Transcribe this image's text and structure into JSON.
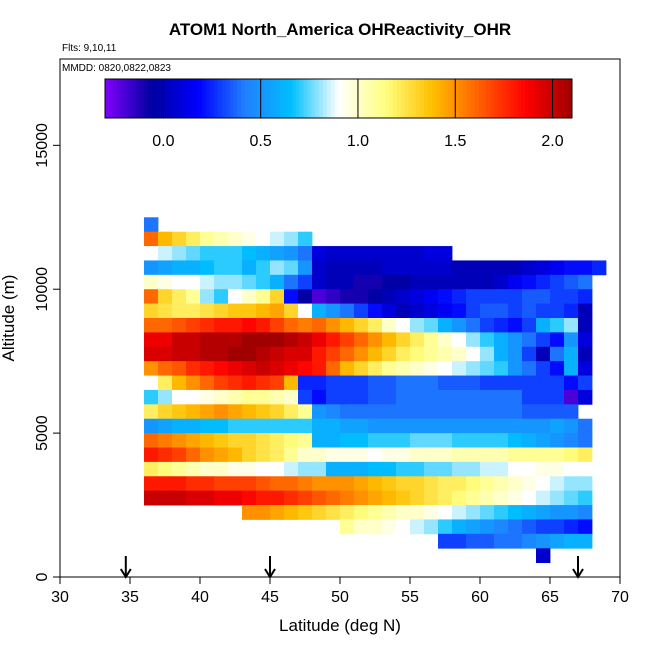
{
  "chart_data": {
    "type": "heatmap",
    "title": "ATOM1 North_America OHReactivity_OHR",
    "flights_text": "Flts: 9,10,11",
    "dates_text": "MMDD: 0820,0822,0823",
    "xlabel": "Latitude (deg N)",
    "ylabel": "Altitude (m)",
    "xlim": [
      30,
      70
    ],
    "ylim": [
      0,
      18000
    ],
    "x_ticks": [
      30,
      35,
      40,
      45,
      50,
      55,
      60,
      65,
      70
    ],
    "y_ticks": [
      0,
      5000,
      10000,
      15000
    ],
    "cell_width_deg": 1,
    "cell_height_m": 500,
    "colorbar": {
      "range": [
        -0.3,
        2.1
      ],
      "ticks": [
        0.0,
        0.5,
        1.0,
        1.5,
        2.0
      ],
      "tick_labels": [
        "0.0",
        "0.5",
        "1.0",
        "1.5",
        "2.0"
      ],
      "colors": [
        "#8000ff",
        "#0000a0",
        "#0000ff",
        "#2080ff",
        "#00c0ff",
        "#ffffff",
        "#ffff80",
        "#ffc000",
        "#ff6000",
        "#ff0000",
        "#a00000"
      ]
    },
    "markers_latitude": [
      34.7,
      45,
      67
    ],
    "rows": [
      {
        "alt": 12250,
        "lat_start": 36,
        "values": [
          0.4
        ]
      },
      {
        "alt": 11750,
        "lat_start": 36,
        "values": [
          1.6,
          1.4,
          1.3,
          1.2,
          1.1,
          1.05,
          1.0,
          0.95,
          0.9,
          0.85,
          0.8,
          0.7
        ]
      },
      {
        "alt": 11250,
        "lat_start": 36,
        "values": [
          0.9,
          0.85,
          0.8,
          0.75,
          0.7,
          0.7,
          0.7,
          0.65,
          0.6,
          0.55,
          0.5,
          0.4,
          0.1,
          0.05,
          0.05,
          0.05,
          0.05,
          0.05,
          0.05,
          0.05,
          0.1,
          0.1
        ]
      },
      {
        "alt": 10750,
        "lat_start": 36,
        "values": [
          0.5,
          0.55,
          0.6,
          0.6,
          0.65,
          0.7,
          0.7,
          0.6,
          0.7,
          0.8,
          0.75,
          0.5,
          0.05,
          0.0,
          0.0,
          0.0,
          0.0,
          0.05,
          0.05,
          0.05,
          0.05,
          0.05,
          0.0,
          0.0,
          0.0,
          0.0,
          0.0,
          0.05,
          0.1,
          0.15,
          0.2,
          0.2,
          0.25
        ]
      },
      {
        "alt": 10250,
        "lat_start": 36,
        "values": [
          1.0,
          0.95,
          0.9,
          0.9,
          0.85,
          0.8,
          0.8,
          0.75,
          0.7,
          0.6,
          0.4,
          0.3,
          0.05,
          0.0,
          0.0,
          -0.1,
          -0.1,
          -0.05,
          -0.05,
          0.0,
          0.0,
          0.0,
          0.0,
          0.0,
          0.0,
          0.05,
          0.15,
          0.2,
          0.25,
          0.3,
          0.35,
          0.4
        ]
      },
      {
        "alt": 9750,
        "lat_start": 36,
        "values": [
          1.6,
          1.3,
          1.2,
          1.1,
          0.8,
          0.7,
          0.9,
          1.0,
          1.1,
          1.3,
          0.2,
          -0.05,
          -0.2,
          -0.15,
          -0.1,
          -0.1,
          -0.05,
          0.0,
          0.05,
          0.1,
          0.15,
          0.2,
          0.25,
          0.3,
          0.3,
          0.3,
          0.3,
          0.35,
          0.35,
          0.3,
          0.3,
          0.25
        ]
      },
      {
        "alt": 9250,
        "lat_start": 36,
        "values": [
          1.3,
          1.25,
          1.2,
          1.2,
          1.25,
          1.3,
          1.35,
          1.35,
          1.4,
          1.45,
          1.3,
          0.9,
          0.6,
          0.5,
          0.4,
          0.3,
          0.2,
          0.1,
          0.0,
          0.05,
          0.1,
          0.15,
          0.2,
          0.3,
          0.35,
          0.35,
          0.3,
          0.35,
          0.3,
          0.3,
          0.25,
          0.0
        ]
      },
      {
        "alt": 8750,
        "lat_start": 36,
        "values": [
          1.6,
          1.6,
          1.65,
          1.7,
          1.75,
          1.8,
          1.8,
          1.85,
          1.8,
          1.7,
          1.6,
          1.55,
          1.6,
          1.5,
          1.4,
          1.3,
          1.2,
          1.0,
          0.9,
          0.8,
          0.75,
          0.6,
          0.5,
          0.4,
          0.3,
          0.25,
          0.2,
          0.3,
          0.6,
          0.7,
          0.8,
          0.0
        ]
      },
      {
        "alt": 8250,
        "lat_start": 36,
        "values": [
          1.9,
          1.9,
          2.0,
          2.0,
          2.05,
          2.05,
          2.05,
          2.1,
          2.1,
          2.1,
          2.05,
          2.0,
          1.9,
          1.8,
          1.7,
          1.6,
          1.5,
          1.4,
          1.3,
          1.2,
          1.1,
          1.0,
          0.9,
          0.8,
          0.7,
          0.6,
          0.5,
          0.4,
          0.3,
          0.2,
          0.5,
          0.1
        ]
      },
      {
        "alt": 7750,
        "lat_start": 36,
        "values": [
          1.95,
          1.95,
          2.0,
          2.0,
          2.05,
          2.05,
          2.1,
          2.1,
          2.05,
          2.0,
          1.95,
          1.95,
          1.8,
          1.7,
          1.6,
          1.5,
          1.4,
          1.3,
          1.2,
          1.15,
          1.1,
          1.05,
          1.0,
          0.9,
          0.8,
          0.6,
          0.5,
          0.3,
          0.0,
          0.4,
          0.6,
          0.0
        ]
      },
      {
        "alt": 7250,
        "lat_start": 36,
        "values": [
          1.5,
          1.6,
          1.65,
          1.75,
          1.8,
          1.85,
          1.9,
          1.95,
          2.0,
          1.95,
          1.9,
          1.85,
          1.8,
          1.6,
          1.4,
          1.3,
          1.2,
          1.1,
          1.05,
          1.0,
          0.95,
          0.9,
          0.85,
          0.8,
          0.75,
          0.7,
          0.5,
          0.4,
          0.3,
          0.2,
          0.6,
          0.1
        ]
      },
      {
        "alt": 6750,
        "lat_start": 36,
        "values": [
          0.9,
          1.2,
          1.4,
          1.5,
          1.6,
          1.7,
          1.75,
          1.8,
          1.75,
          1.7,
          1.4,
          0.25,
          0.25,
          0.3,
          0.3,
          0.3,
          0.35,
          0.35,
          0.4,
          0.4,
          0.4,
          0.35,
          0.35,
          0.35,
          0.3,
          0.3,
          0.3,
          0.3,
          0.3,
          0.3,
          0.2,
          0.3
        ]
      },
      {
        "alt": 6250,
        "lat_start": 36,
        "values": [
          0.7,
          0.8,
          0.9,
          0.9,
          0.95,
          1.0,
          1.05,
          1.1,
          1.1,
          1.05,
          1.0,
          0.3,
          0.2,
          0.3,
          0.3,
          0.3,
          0.35,
          0.35,
          0.4,
          0.4,
          0.4,
          0.4,
          0.4,
          0.4,
          0.4,
          0.4,
          0.4,
          0.3,
          0.3,
          0.3,
          -0.2,
          0.1
        ]
      },
      {
        "alt": 5750,
        "lat_start": 36,
        "values": [
          1.2,
          1.3,
          1.35,
          1.4,
          1.45,
          1.5,
          1.45,
          1.4,
          1.35,
          1.3,
          1.2,
          1.1,
          0.5,
          0.45,
          0.4,
          0.4,
          0.4,
          0.4,
          0.4,
          0.4,
          0.4,
          0.4,
          0.4,
          0.4,
          0.4,
          0.4,
          0.4,
          0.35,
          0.35,
          0.35,
          0.35
        ]
      },
      {
        "alt": 5250,
        "lat_start": 36,
        "values": [
          0.5,
          0.55,
          0.6,
          0.6,
          0.65,
          0.65,
          0.7,
          0.7,
          0.7,
          0.7,
          0.7,
          0.7,
          0.6,
          0.6,
          0.55,
          0.55,
          0.5,
          0.5,
          0.5,
          0.5,
          0.5,
          0.5,
          0.5,
          0.5,
          0.5,
          0.5,
          0.5,
          0.5,
          0.5,
          0.55,
          0.5,
          0.4
        ]
      },
      {
        "alt": 4750,
        "lat_start": 36,
        "values": [
          1.6,
          1.55,
          1.5,
          1.45,
          1.4,
          1.35,
          1.3,
          1.3,
          1.25,
          1.2,
          1.15,
          1.1,
          0.6,
          0.6,
          0.65,
          0.65,
          0.7,
          0.7,
          0.7,
          0.75,
          0.75,
          0.75,
          0.7,
          0.7,
          0.7,
          0.7,
          0.65,
          0.6,
          0.55,
          0.5,
          0.45,
          0.4
        ]
      },
      {
        "alt": 4250,
        "lat_start": 36,
        "values": [
          1.8,
          1.75,
          1.7,
          1.6,
          1.5,
          1.45,
          1.4,
          1.3,
          1.25,
          1.2,
          1.1,
          1.0,
          1.0,
          0.95,
          0.95,
          0.95,
          0.9,
          0.95,
          0.95,
          1.0,
          1.0,
          1.0,
          1.05,
          1.05,
          1.05,
          1.05,
          1.1,
          1.1,
          1.1,
          1.1,
          1.15,
          1.2
        ]
      },
      {
        "alt": 3750,
        "lat_start": 36,
        "values": [
          1.2,
          1.15,
          1.1,
          1.05,
          1.0,
          1.0,
          0.95,
          0.95,
          0.9,
          0.9,
          0.85,
          0.8,
          0.8,
          0.6,
          0.6,
          0.6,
          0.65,
          0.65,
          0.7,
          0.7,
          0.75,
          0.75,
          0.8,
          0.8,
          0.85,
          0.85,
          0.9,
          0.9,
          0.95,
          0.95,
          0.9,
          0.9
        ]
      },
      {
        "alt": 3250,
        "lat_start": 36,
        "values": [
          1.8,
          1.8,
          1.8,
          1.75,
          1.75,
          1.7,
          1.7,
          1.7,
          1.65,
          1.6,
          1.6,
          1.55,
          1.5,
          1.5,
          1.5,
          1.45,
          1.4,
          1.35,
          1.3,
          1.3,
          1.25,
          1.2,
          1.2,
          1.15,
          1.1,
          1.05,
          1.0,
          0.95,
          0.9,
          0.85,
          0.8,
          0.8
        ]
      },
      {
        "alt": 2750,
        "lat_start": 36,
        "values": [
          2.0,
          2.0,
          2.0,
          1.95,
          1.95,
          1.9,
          1.9,
          1.85,
          1.8,
          1.8,
          1.75,
          1.7,
          1.65,
          1.6,
          1.55,
          1.5,
          1.45,
          1.4,
          1.35,
          1.3,
          1.25,
          1.2,
          1.15,
          1.1,
          1.05,
          1.0,
          0.95,
          0.9,
          0.85,
          0.8,
          0.75,
          0.7
        ]
      },
      {
        "alt": 2250,
        "lat_start": 43,
        "values": [
          1.5,
          1.5,
          1.45,
          1.4,
          1.35,
          1.3,
          1.25,
          1.2,
          1.15,
          1.1,
          1.05,
          1.0,
          1.0,
          0.95,
          0.9,
          0.85,
          0.8,
          0.75,
          0.7,
          0.65,
          0.6,
          0.55,
          0.5,
          0.5,
          0.45
        ]
      },
      {
        "alt": 1750,
        "lat_start": 50,
        "values": [
          1.1,
          1.0,
          1.0,
          0.95,
          0.9,
          0.85,
          0.8,
          0.7,
          0.6,
          0.55,
          0.5,
          0.45,
          0.4,
          0.35,
          0.3,
          0.3,
          0.25,
          0.2
        ]
      },
      {
        "alt": 1250,
        "lat_start": 57,
        "values": [
          0.3,
          0.3,
          0.35,
          0.35,
          0.4,
          0.4,
          0.45,
          0.5,
          0.55,
          0.6,
          0.6
        ]
      },
      {
        "alt": 750,
        "lat_start": 64,
        "values": [
          0.05
        ]
      }
    ]
  }
}
